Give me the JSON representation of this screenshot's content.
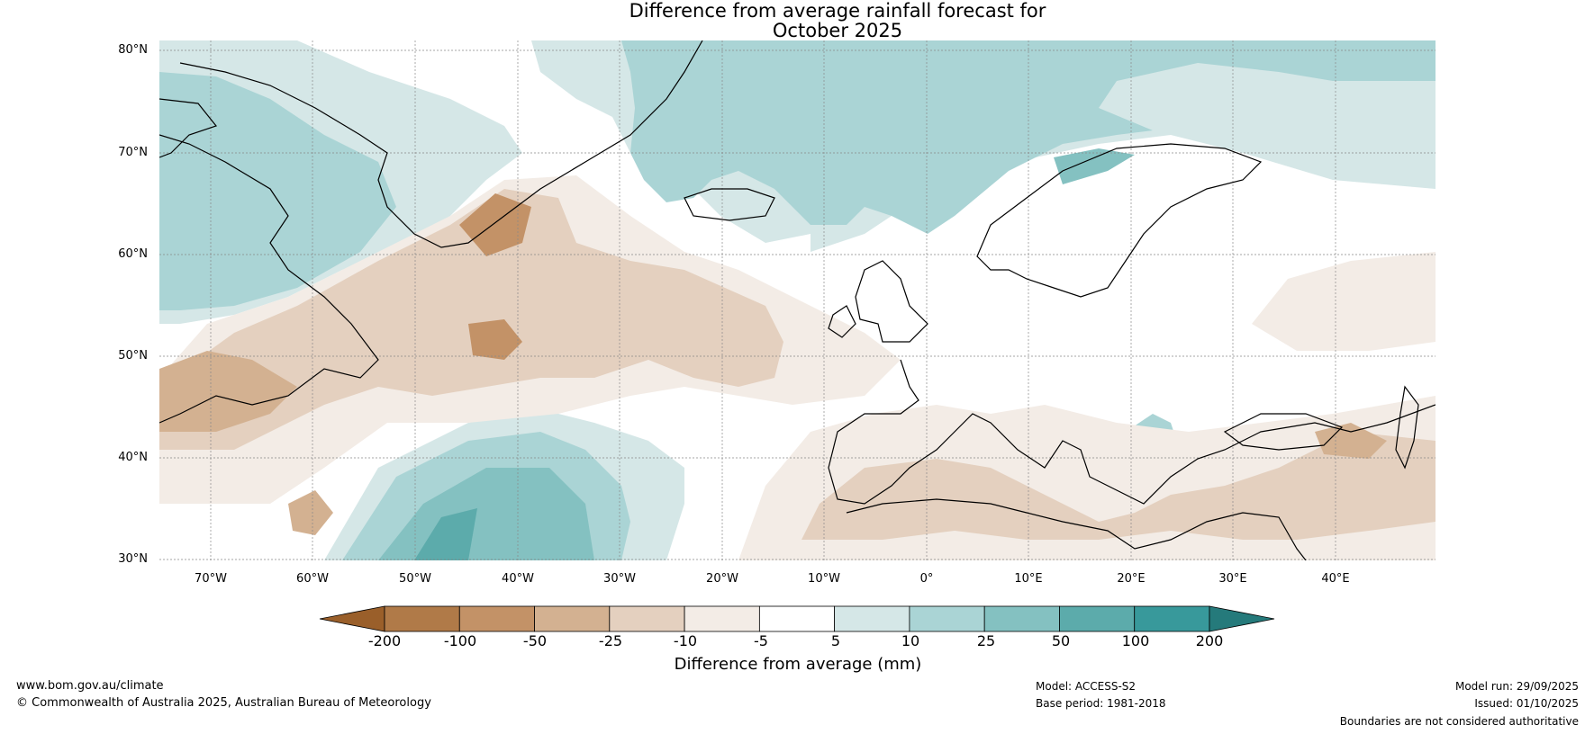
{
  "title": {
    "line1": "Difference from average rainfall forecast for",
    "line2": "October 2025"
  },
  "latitude_labels": [
    "80°N",
    "70°N",
    "60°N",
    "50°N",
    "40°N",
    "30°N"
  ],
  "longitude_labels": [
    "70°W",
    "60°W",
    "50°W",
    "40°W",
    "30°W",
    "20°W",
    "10°W",
    "0°",
    "10°E",
    "20°E",
    "30°E",
    "40°E"
  ],
  "colorbar": {
    "ticks": [
      "-200",
      "-100",
      "-50",
      "-25",
      "-10",
      "-5",
      "5",
      "10",
      "25",
      "50",
      "100",
      "200"
    ],
    "colors": [
      "#9a5f2a",
      "#b07a48",
      "#c39267",
      "#d3b191",
      "#e4d0bf",
      "#f3ece6",
      "#ffffff",
      "#d5e7e7",
      "#aad4d5",
      "#84c1c1",
      "#5cabab",
      "#38999b",
      "#257a7b"
    ],
    "label": "Difference from average (mm)"
  },
  "footer": {
    "website": "www.bom.gov.au/climate",
    "copyright": "© Commonwealth of Australia 2025, Australian Bureau of Meteorology",
    "model": "Model: ACCESS-S2",
    "base_period": "Base period: 1981-2018",
    "model_run": "Model run: 29/09/2025",
    "issued": "Issued: 01/10/2025",
    "disclaimer": "Boundaries are not considered authoritative"
  }
}
